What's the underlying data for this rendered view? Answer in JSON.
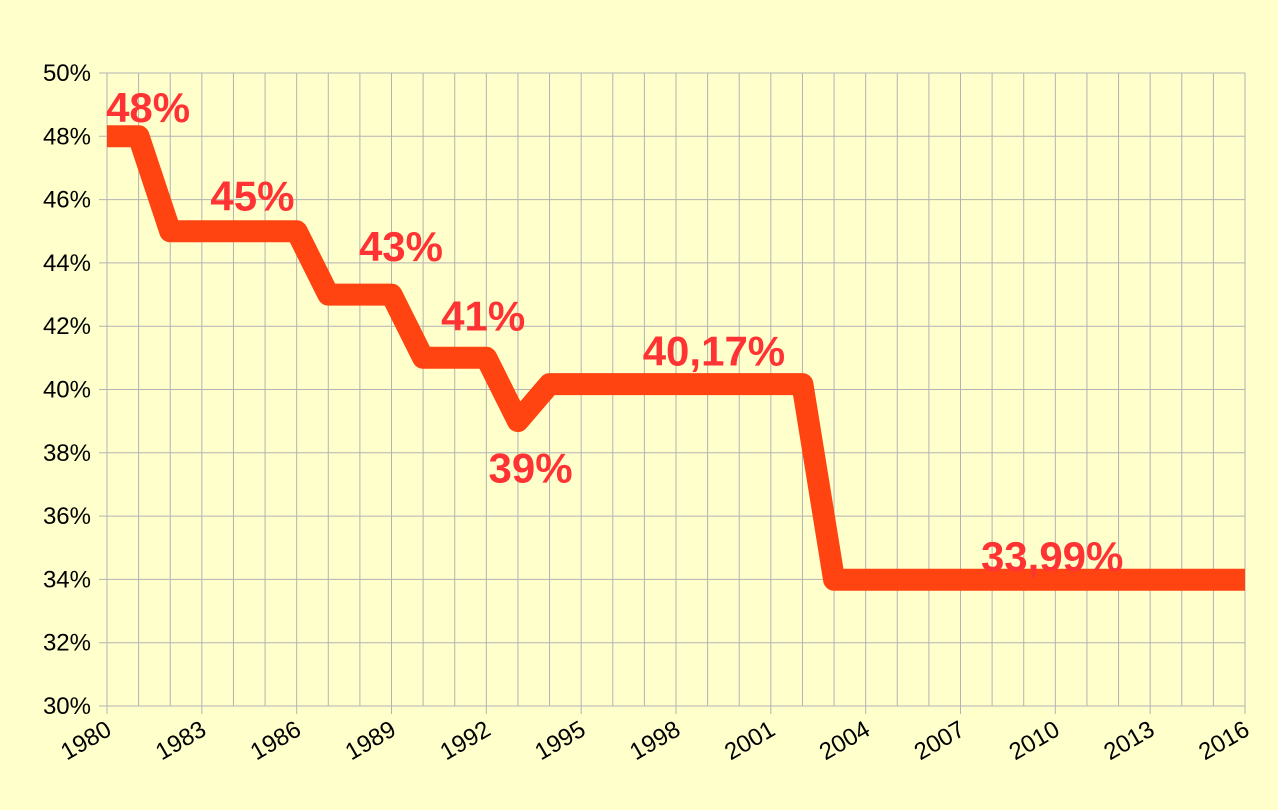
{
  "chart_data": {
    "type": "line",
    "title": "",
    "xlabel": "",
    "ylabel": "",
    "xlim": [
      1980,
      2016
    ],
    "ylim": [
      30,
      50
    ],
    "y_ticks": [
      30,
      32,
      34,
      36,
      38,
      40,
      42,
      44,
      46,
      48,
      50
    ],
    "y_tick_labels": [
      "30%",
      "32%",
      "34%",
      "36%",
      "38%",
      "40%",
      "42%",
      "44%",
      "46%",
      "48%",
      "50%"
    ],
    "x_tick_labels": [
      "1980",
      "1983",
      "1986",
      "1989",
      "1992",
      "1995",
      "1998",
      "2001",
      "2004",
      "2007",
      "2010",
      "2013",
      "2016"
    ],
    "x_tick_values": [
      1980,
      1983,
      1986,
      1989,
      1992,
      1995,
      1998,
      2001,
      2004,
      2007,
      2010,
      2013,
      2016
    ],
    "grid": true,
    "legend": "none",
    "series": [
      {
        "color": "#ff4411",
        "x": [
          1980,
          1981,
          1982,
          1983,
          1984,
          1985,
          1986,
          1987,
          1988,
          1989,
          1990,
          1991,
          1992,
          1993,
          1994,
          1995,
          1996,
          1997,
          1998,
          1999,
          2000,
          2001,
          2002,
          2003,
          2004,
          2005,
          2006,
          2007,
          2008,
          2009,
          2010,
          2011,
          2012,
          2013,
          2014,
          2015,
          2016
        ],
        "values": [
          48,
          48,
          45,
          45,
          45,
          45,
          45,
          43,
          43,
          43,
          41,
          41,
          41,
          39,
          40.17,
          40.17,
          40.17,
          40.17,
          40.17,
          40.17,
          40.17,
          40.17,
          40.17,
          33.99,
          33.99,
          33.99,
          33.99,
          33.99,
          33.99,
          33.99,
          33.99,
          33.99,
          33.99,
          33.99,
          33.99,
          33.99,
          33.99
        ]
      }
    ],
    "annotations": [
      {
        "text": "48%",
        "x": 1981.3,
        "y": 48.9
      },
      {
        "text": "45%",
        "x": 1984.6,
        "y": 46.1
      },
      {
        "text": "43%",
        "x": 1989.3,
        "y": 44.5
      },
      {
        "text": "41%",
        "x": 1991.9,
        "y": 42.3
      },
      {
        "text": "39%",
        "x": 1993.4,
        "y": 37.5
      },
      {
        "text": "40,17%",
        "x": 1999.2,
        "y": 41.2
      },
      {
        "text": "33,99%",
        "x": 2009.9,
        "y": 34.7
      }
    ]
  }
}
